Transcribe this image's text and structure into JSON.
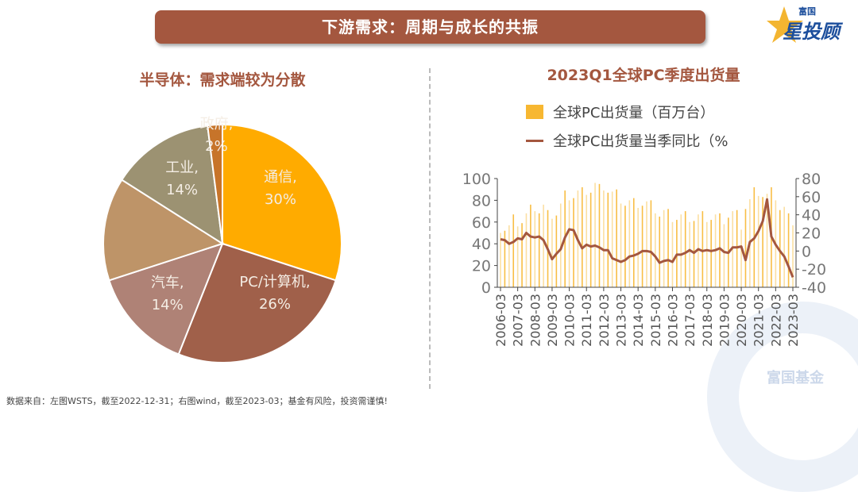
{
  "header": {
    "title": "下游需求：周期与成长的共振"
  },
  "logo": {
    "text_top": "富国",
    "text_main": "星投顾"
  },
  "watermark": "富国基金",
  "source": "数据来自：左图WSTS，截至2022-12-31；右图wind，截至2023-03；基金有风险，投资需谨慎!",
  "colors": {
    "brand": "#A4573F",
    "bar": "#F7B731",
    "line": "#A4573F"
  },
  "chart_data": [
    {
      "type": "pie",
      "title": "半导体：需求端较为分散",
      "slices": [
        {
          "label": "通信, 30%",
          "value": 30,
          "color": "#FFAB00"
        },
        {
          "label": "PC/计算机, 26%",
          "label_lines": [
            "PC/计算",
            "机, 26%"
          ],
          "value": 26,
          "color": "#A0604A"
        },
        {
          "label": "汽车, 14%",
          "label_lines": [
            "汽车,",
            "14%"
          ],
          "value": 14,
          "color": "#AF8276"
        },
        {
          "label": "",
          "value": 14,
          "color": "#BE9468"
        },
        {
          "label": "工业, 14%",
          "label_lines": [
            "工业,",
            "14%"
          ],
          "value": 14,
          "color": "#9C9272"
        },
        {
          "label": "政府, 2%",
          "label_lines": [
            "政府,",
            "2%"
          ],
          "value": 2,
          "color": "#C7742A"
        }
      ]
    },
    {
      "type": "bar+line",
      "title": "2023Q1全球PC季度出货量",
      "legend": [
        "全球PC出货量（百万台）",
        "全球PC出货量当季同比（%"
      ],
      "x_ticks": [
        "2006-03",
        "2007-03",
        "2008-03",
        "2009-03",
        "2010-03",
        "2011-03",
        "2012-03",
        "2013-03",
        "2014-03",
        "2015-03",
        "2016-03",
        "2017-03",
        "2018-03",
        "2019-03",
        "2020-03",
        "2021-03",
        "2022-03",
        "2023-03"
      ],
      "y_left": {
        "min": 0,
        "max": 100,
        "ticks": [
          0,
          20,
          40,
          60,
          80,
          100
        ]
      },
      "y_right": {
        "min": -40,
        "max": 80,
        "ticks": [
          -40,
          -20,
          0,
          20,
          40,
          60,
          80
        ]
      },
      "series": [
        {
          "name": "全球PC出货量（百万台）",
          "type": "bar",
          "axis": "left",
          "values": [
            50,
            52,
            57,
            67,
            56,
            59,
            68,
            76,
            70,
            68,
            76,
            71,
            63,
            66,
            77,
            89,
            80,
            82,
            89,
            92,
            85,
            87,
            96,
            95,
            89,
            87,
            88,
            90,
            77,
            75,
            80,
            82,
            73,
            75,
            79,
            80,
            68,
            65,
            71,
            72,
            60,
            62,
            67,
            70,
            60,
            61,
            67,
            70,
            60,
            62,
            67,
            68,
            58,
            64,
            70,
            71,
            53,
            72,
            81,
            92,
            84,
            83,
            86,
            92,
            80,
            71,
            74,
            68,
            57
          ]
        },
        {
          "name": "全球PC出货量当季同比（%",
          "type": "line",
          "axis": "right",
          "values": [
            13,
            12,
            8,
            10,
            14,
            13,
            20,
            16,
            15,
            16,
            12,
            2,
            -9,
            -3,
            2,
            15,
            24,
            23,
            12,
            3,
            7,
            5,
            6,
            4,
            1,
            1,
            -8,
            -10,
            -12,
            -10,
            -6,
            -5,
            -3,
            0,
            0,
            -1,
            -6,
            -13,
            -11,
            -10,
            -12,
            -4,
            -4,
            -2,
            1,
            -2,
            2,
            0,
            1,
            0,
            1,
            3,
            -1,
            -2,
            4,
            4,
            5,
            -10,
            10,
            14,
            22,
            33,
            57,
            16,
            7,
            0,
            -6,
            -17,
            -29
          ]
        }
      ]
    }
  ]
}
